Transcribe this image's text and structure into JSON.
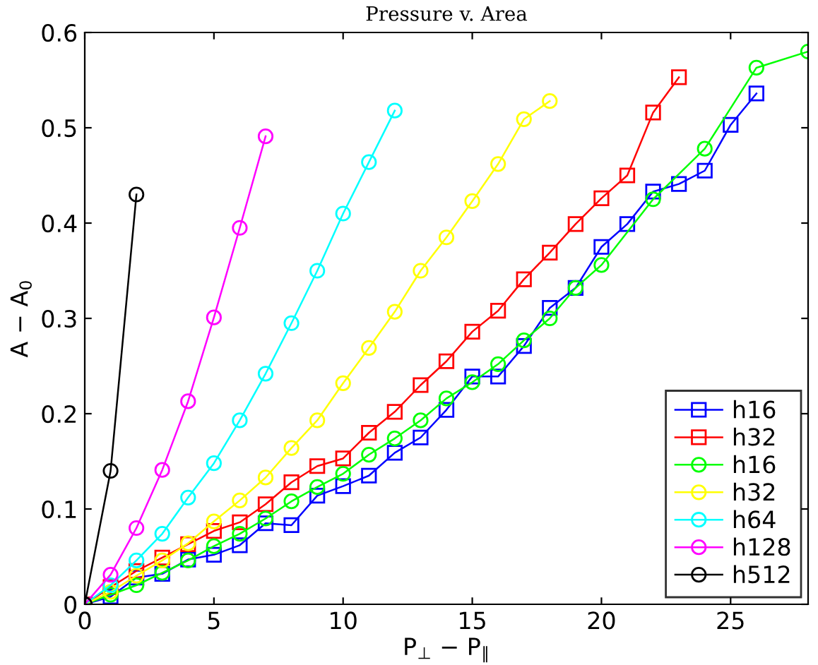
{
  "chart_data": {
    "type": "line",
    "title": "Pressure v. Area",
    "xlabel": "P$_{⊥}$ − P$_{∥}$",
    "ylabel": "A − A$_{0}$",
    "xlim": [
      0,
      28
    ],
    "ylim": [
      0,
      0.6
    ],
    "xticks": [
      0,
      5,
      10,
      15,
      20,
      25
    ],
    "yticks": [
      0,
      0.1,
      0.2,
      0.3,
      0.4,
      0.5,
      0.6
    ],
    "grid": false,
    "legend": "bottom right",
    "line_style": "solid",
    "series": [
      {
        "name": "h16",
        "color": "#0000ff",
        "marker": "square",
        "x": [
          0,
          1,
          2,
          3,
          4,
          5,
          6,
          7,
          8,
          9,
          10,
          11,
          12,
          13,
          14,
          15,
          16,
          17,
          18,
          19,
          20,
          21,
          22,
          23,
          24,
          25,
          26
        ],
        "values": [
          0,
          0.008,
          0.028,
          0.032,
          0.047,
          0.052,
          0.062,
          0.085,
          0.083,
          0.114,
          0.124,
          0.135,
          0.159,
          0.175,
          0.204,
          0.239,
          0.239,
          0.271,
          0.311,
          0.332,
          0.375,
          0.399,
          0.433,
          0.441,
          0.455,
          0.503,
          0.536
        ]
      },
      {
        "name": "h32",
        "color": "#ff0000",
        "marker": "square",
        "x": [
          0,
          1,
          2,
          3,
          4,
          5,
          6,
          7,
          8,
          9,
          10,
          11,
          12,
          13,
          14,
          15,
          16,
          17,
          18,
          19,
          20,
          21,
          22,
          23
        ],
        "values": [
          0,
          0.018,
          0.035,
          0.049,
          0.063,
          0.077,
          0.086,
          0.105,
          0.128,
          0.145,
          0.153,
          0.18,
          0.202,
          0.23,
          0.255,
          0.286,
          0.308,
          0.341,
          0.369,
          0.399,
          0.426,
          0.45,
          0.516,
          0.553
        ]
      },
      {
        "name": "h16",
        "color": "#00ff00",
        "marker": "circle",
        "x": [
          0,
          1,
          2,
          3,
          4,
          5,
          6,
          7,
          8,
          9,
          10,
          11,
          12,
          13,
          14,
          15,
          16,
          17,
          18,
          19,
          20,
          22,
          24,
          26,
          28
        ],
        "values": [
          0,
          0.01,
          0.02,
          0.033,
          0.046,
          0.061,
          0.074,
          0.09,
          0.108,
          0.123,
          0.137,
          0.157,
          0.174,
          0.193,
          0.216,
          0.233,
          0.252,
          0.277,
          0.3,
          0.332,
          0.356,
          0.425,
          0.478,
          0.563,
          0.58
        ]
      },
      {
        "name": "h32",
        "color": "#ffff00",
        "marker": "circle",
        "x": [
          0,
          1,
          2,
          3,
          4,
          5,
          6,
          7,
          8,
          9,
          10,
          11,
          12,
          13,
          14,
          15,
          16,
          17,
          18
        ],
        "values": [
          0,
          0.013,
          0.03,
          0.046,
          0.064,
          0.087,
          0.109,
          0.133,
          0.164,
          0.193,
          0.232,
          0.269,
          0.307,
          0.35,
          0.385,
          0.423,
          0.462,
          0.509,
          0.528
        ]
      },
      {
        "name": "h64",
        "color": "#00ffff",
        "marker": "circle",
        "x": [
          0,
          1,
          2,
          3,
          4,
          5,
          6,
          7,
          8,
          9,
          10,
          11,
          12
        ],
        "values": [
          0,
          0.02,
          0.046,
          0.074,
          0.112,
          0.148,
          0.193,
          0.242,
          0.295,
          0.35,
          0.41,
          0.464,
          0.518
        ]
      },
      {
        "name": "h128",
        "color": "#ff00ff",
        "marker": "circle",
        "x": [
          0,
          1,
          2,
          3,
          4,
          5,
          6,
          7
        ],
        "values": [
          0,
          0.031,
          0.08,
          0.141,
          0.213,
          0.301,
          0.395,
          0.491
        ]
      },
      {
        "name": "h512",
        "color": "#000000",
        "marker": "circle",
        "x": [
          0,
          1,
          2
        ],
        "values": [
          0,
          0.14,
          0.43
        ]
      }
    ]
  }
}
